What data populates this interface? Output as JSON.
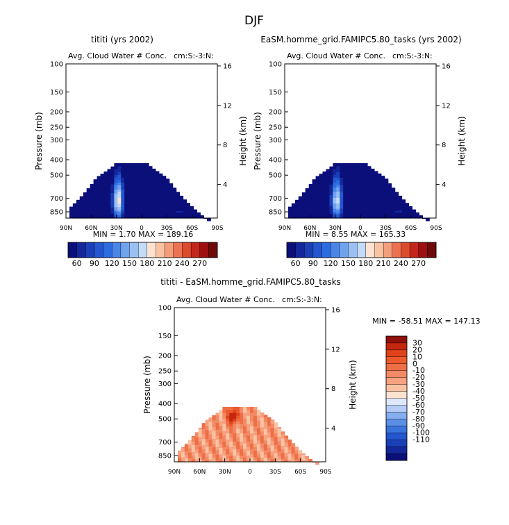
{
  "title": "DJF",
  "colors": {
    "seq_palette": [
      "#0b0f7a",
      "#13279a",
      "#1b3fb6",
      "#2356cf",
      "#2d6be0",
      "#4a86e8",
      "#6fa3ee",
      "#9ac0f3",
      "#c3dbf8",
      "#fde3cf",
      "#f9c3a3",
      "#f49d7a",
      "#ec7352",
      "#dd4a2e",
      "#c5261a",
      "#9e0f0f",
      "#6e0a0a"
    ],
    "diff_palette": [
      "#0b0f7a",
      "#13279a",
      "#1b3fb6",
      "#2356cf",
      "#3b73dd",
      "#5b8fe6",
      "#86adef",
      "#b4ccf6",
      "#dde8fb",
      "#fde3cf",
      "#f9c3a3",
      "#f6a17f",
      "#f28a66",
      "#ee6e46",
      "#eb5a2d",
      "#e0431a",
      "#c4260e",
      "#8f0f0a"
    ]
  },
  "chart_data": [
    {
      "type": "heatmap",
      "panel": "top-left",
      "title": "tititi (yrs 2002)",
      "subtitle_left": "Avg. Cloud Water # Conc.",
      "subtitle_right": "cm:S:-3:N:",
      "ylabel": "Pressure (mb)",
      "ylabel_right": "Height (km)",
      "x_ticks": [
        "90N",
        "60N",
        "30N",
        "0",
        "30S",
        "60S",
        "90S"
      ],
      "y_ticks": [
        100,
        150,
        200,
        250,
        300,
        400,
        500,
        700,
        850
      ],
      "height_ticks": [
        16,
        12,
        8,
        4
      ],
      "stats": "MIN =      1.70   MAX =  189.16",
      "colorbar_labels": [
        "60",
        "90",
        "120",
        "150",
        "180",
        "210",
        "240",
        "270"
      ],
      "field": "seq"
    },
    {
      "type": "heatmap",
      "panel": "top-right",
      "title": "EaSM.homme_grid.FAMIPC5.80_tasks (yrs 2002)",
      "subtitle_left": "Avg. Cloud Water # Conc.",
      "subtitle_right": "cm:S:-3:N:",
      "ylabel": "Pressure (mb)",
      "ylabel_right": "Height (km)",
      "x_ticks": [
        "90N",
        "60N",
        "30N",
        "0",
        "30S",
        "60S",
        "90S"
      ],
      "y_ticks": [
        100,
        150,
        200,
        250,
        300,
        400,
        500,
        700,
        850
      ],
      "height_ticks": [
        16,
        12,
        8,
        4
      ],
      "stats": "MIN =      8.55   MAX =  165.33",
      "colorbar_labels": [
        "60",
        "90",
        "120",
        "150",
        "180",
        "210",
        "240",
        "270"
      ],
      "field": "seq"
    },
    {
      "type": "heatmap",
      "panel": "bottom",
      "title": "tititi - EaSM.homme_grid.FAMIPC5.80_tasks",
      "subtitle_left": "Avg. Cloud Water # Conc.",
      "subtitle_right": "cm:S:-3:N:",
      "ylabel": "Pressure (mb)",
      "ylabel_right": "Height (km)",
      "x_ticks": [
        "90N",
        "60N",
        "30N",
        "0",
        "30S",
        "60S",
        "90S"
      ],
      "y_ticks": [
        100,
        150,
        200,
        250,
        300,
        400,
        500,
        700,
        850
      ],
      "height_ticks": [
        16,
        12,
        8,
        4
      ],
      "stats": "MIN = -58.51   MAX = 147.13",
      "colorbar_labels": [
        "30",
        "20",
        "10",
        "0",
        "-10",
        "-20",
        "-30",
        "-40",
        "-50",
        "-60",
        "-70",
        "-80",
        "-90",
        "-100",
        "-110"
      ],
      "field": "diff"
    }
  ]
}
